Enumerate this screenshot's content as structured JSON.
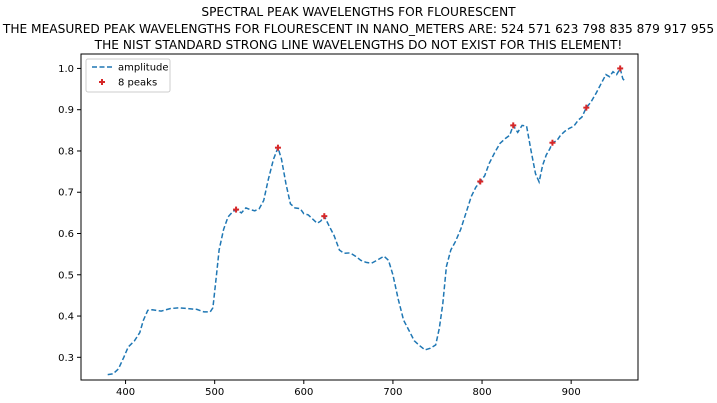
{
  "chart_data": {
    "type": "line",
    "title_lines": [
      "SPECTRAL PEAK WAVELENGTHS FOR FLOURESCENT",
      "THE MEASURED PEAK WAVELENGTHS FOR FLOURESCENT IN NANO_METERS ARE: 524 571 623 798 835 879 917 955",
      "THE NIST STANDARD STRONG LINE WAVELENGTHS DO NOT EXIST FOR THIS ELEMENT!"
    ],
    "xlabel": "",
    "ylabel": "",
    "xlim": [
      350,
      975
    ],
    "ylim": [
      0.245,
      1.035
    ],
    "x_ticks": [
      400,
      500,
      600,
      700,
      800,
      900
    ],
    "y_ticks": [
      0.3,
      0.4,
      0.5,
      0.6,
      0.7,
      0.8,
      0.9,
      1.0
    ],
    "legend_position": "upper-left",
    "series": [
      {
        "name": "amplitude",
        "style": "dashed-line",
        "color": "#1f77b4",
        "points": [
          [
            380,
            0.258
          ],
          [
            386,
            0.26
          ],
          [
            392,
            0.272
          ],
          [
            398,
            0.3
          ],
          [
            403,
            0.325
          ],
          [
            410,
            0.34
          ],
          [
            416,
            0.36
          ],
          [
            420,
            0.39
          ],
          [
            425,
            0.414
          ],
          [
            430,
            0.415
          ],
          [
            440,
            0.412
          ],
          [
            450,
            0.418
          ],
          [
            460,
            0.42
          ],
          [
            470,
            0.418
          ],
          [
            480,
            0.416
          ],
          [
            488,
            0.41
          ],
          [
            495,
            0.41
          ],
          [
            498,
            0.42
          ],
          [
            502,
            0.5
          ],
          [
            505,
            0.56
          ],
          [
            510,
            0.61
          ],
          [
            515,
            0.64
          ],
          [
            520,
            0.652
          ],
          [
            524,
            0.658
          ],
          [
            530,
            0.65
          ],
          [
            535,
            0.662
          ],
          [
            540,
            0.658
          ],
          [
            545,
            0.655
          ],
          [
            550,
            0.66
          ],
          [
            555,
            0.68
          ],
          [
            560,
            0.73
          ],
          [
            566,
            0.78
          ],
          [
            571,
            0.808
          ],
          [
            575,
            0.78
          ],
          [
            580,
            0.72
          ],
          [
            585,
            0.672
          ],
          [
            590,
            0.662
          ],
          [
            596,
            0.66
          ],
          [
            600,
            0.648
          ],
          [
            605,
            0.645
          ],
          [
            610,
            0.635
          ],
          [
            615,
            0.625
          ],
          [
            619,
            0.63
          ],
          [
            623,
            0.642
          ],
          [
            628,
            0.62
          ],
          [
            634,
            0.595
          ],
          [
            640,
            0.56
          ],
          [
            645,
            0.552
          ],
          [
            652,
            0.553
          ],
          [
            658,
            0.545
          ],
          [
            664,
            0.535
          ],
          [
            670,
            0.53
          ],
          [
            676,
            0.528
          ],
          [
            682,
            0.535
          ],
          [
            690,
            0.545
          ],
          [
            695,
            0.535
          ],
          [
            700,
            0.5
          ],
          [
            706,
            0.44
          ],
          [
            712,
            0.39
          ],
          [
            718,
            0.365
          ],
          [
            724,
            0.34
          ],
          [
            730,
            0.328
          ],
          [
            736,
            0.318
          ],
          [
            742,
            0.322
          ],
          [
            748,
            0.33
          ],
          [
            752,
            0.37
          ],
          [
            756,
            0.43
          ],
          [
            760,
            0.52
          ],
          [
            765,
            0.56
          ],
          [
            770,
            0.58
          ],
          [
            776,
            0.61
          ],
          [
            782,
            0.65
          ],
          [
            788,
            0.69
          ],
          [
            793,
            0.712
          ],
          [
            798,
            0.726
          ],
          [
            803,
            0.74
          ],
          [
            808,
            0.77
          ],
          [
            814,
            0.795
          ],
          [
            820,
            0.818
          ],
          [
            826,
            0.83
          ],
          [
            831,
            0.838
          ],
          [
            835,
            0.862
          ],
          [
            840,
            0.845
          ],
          [
            845,
            0.862
          ],
          [
            850,
            0.86
          ],
          [
            855,
            0.8
          ],
          [
            860,
            0.745
          ],
          [
            864,
            0.725
          ],
          [
            868,
            0.765
          ],
          [
            872,
            0.79
          ],
          [
            876,
            0.805
          ],
          [
            879,
            0.82
          ],
          [
            884,
            0.825
          ],
          [
            888,
            0.838
          ],
          [
            893,
            0.848
          ],
          [
            898,
            0.855
          ],
          [
            903,
            0.86
          ],
          [
            908,
            0.875
          ],
          [
            912,
            0.882
          ],
          [
            917,
            0.905
          ],
          [
            922,
            0.918
          ],
          [
            928,
            0.94
          ],
          [
            934,
            0.965
          ],
          [
            939,
            0.985
          ],
          [
            943,
            0.98
          ],
          [
            947,
            0.992
          ],
          [
            951,
            0.985
          ],
          [
            955,
            1.0
          ],
          [
            958,
            0.975
          ],
          [
            961,
            0.968
          ]
        ]
      },
      {
        "name": "8 peaks",
        "style": "red-plus-markers",
        "color": "#d62728",
        "points": [
          [
            524,
            0.658
          ],
          [
            571,
            0.808
          ],
          [
            623,
            0.642
          ],
          [
            798,
            0.726
          ],
          [
            835,
            0.862
          ],
          [
            879,
            0.82
          ],
          [
            917,
            0.905
          ],
          [
            955,
            1.0
          ]
        ]
      }
    ]
  }
}
